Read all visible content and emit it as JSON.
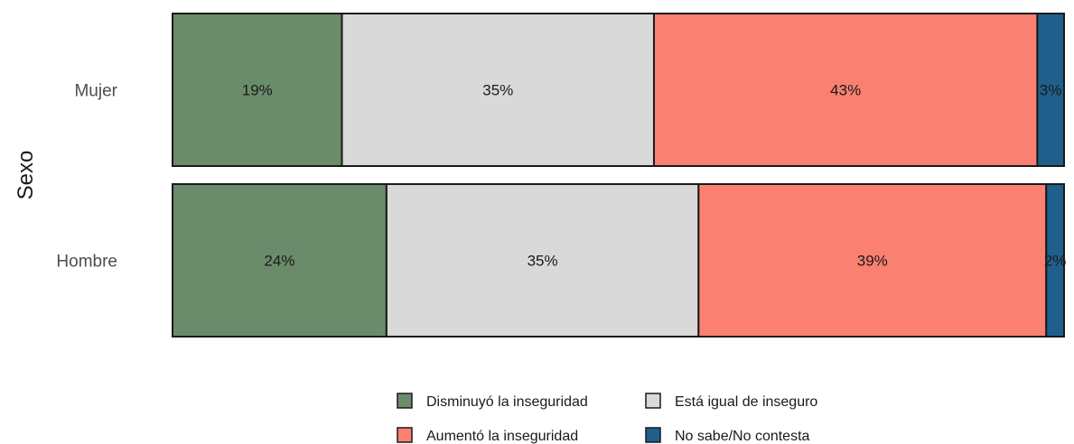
{
  "chart_data": {
    "type": "bar",
    "orientation": "horizontal",
    "stacked": "percent",
    "title": "",
    "xlabel": "",
    "ylabel": "Sexo",
    "xlim": [
      0,
      100
    ],
    "grid": false,
    "legend_position": "bottom",
    "categories": [
      "Mujer",
      "Hombre"
    ],
    "series": [
      {
        "name": "Disminuyó la inseguridad",
        "color": "#6b8c6b",
        "values": [
          19,
          24
        ],
        "labels": [
          "19%",
          "24%"
        ]
      },
      {
        "name": "Está igual de inseguro",
        "color": "#d9d9d9",
        "values": [
          35,
          35
        ],
        "labels": [
          "35%",
          "35%"
        ]
      },
      {
        "name": "Aumentó la inseguridad",
        "color": "#fa8072",
        "values": [
          43,
          39
        ],
        "labels": [
          "43%",
          "39%"
        ]
      },
      {
        "name": "No sabe/No contesta",
        "color": "#1f5f8b",
        "values": [
          3,
          2
        ],
        "labels": [
          "3%",
          "2%"
        ]
      }
    ]
  }
}
